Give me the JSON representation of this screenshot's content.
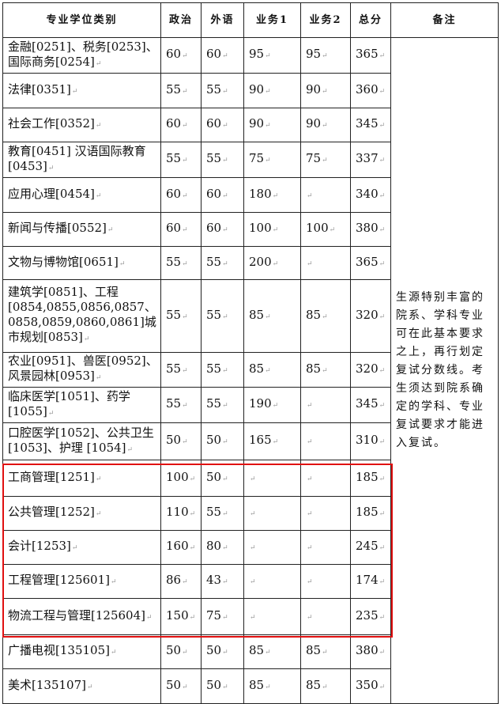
{
  "headers": {
    "category": "专业学位类别",
    "politics": "政治",
    "language": "外语",
    "subject1": "业务1",
    "subject2": "业务2",
    "total": "总分",
    "remark": "备注"
  },
  "rows": [
    {
      "category": "金融[0251]、税务[0253]、国际商务[0254]",
      "politics": "60",
      "language": "60",
      "subject1": "95",
      "subject2": "95",
      "total": "365"
    },
    {
      "category": "法律[0351]",
      "politics": "55",
      "language": "55",
      "subject1": "90",
      "subject2": "90",
      "total": "360"
    },
    {
      "category": "社会工作[0352]",
      "politics": "60",
      "language": "60",
      "subject1": "90",
      "subject2": "90",
      "total": "345"
    },
    {
      "category": "教育[0451] 汉语国际教育[0453]",
      "politics": "55",
      "language": "55",
      "subject1": "75",
      "subject2": "75",
      "total": "337"
    },
    {
      "category": "应用心理[0454]",
      "politics": "60",
      "language": "60",
      "subject1": "180",
      "subject2": "",
      "total": "340"
    },
    {
      "category": "新闻与传播[0552]",
      "politics": "60",
      "language": "60",
      "subject1": "100",
      "subject2": "100",
      "total": "380"
    },
    {
      "category": "文物与博物馆[0651]",
      "politics": "55",
      "language": "55",
      "subject1": "200",
      "subject2": "",
      "total": "365"
    },
    {
      "category": "建筑学[0851]、工程[0854,0855,0856,0857、0858,0859,0860,0861]城市规划[0853]",
      "politics": "55",
      "language": "55",
      "subject1": "85",
      "subject2": "85",
      "total": "320"
    },
    {
      "category": "农业[0951]、兽医[0952]、风景园林[0953]",
      "politics": "55",
      "language": "55",
      "subject1": "85",
      "subject2": "85",
      "total": "320"
    },
    {
      "category": "临床医学[1051]、药学[1055]",
      "politics": "55",
      "language": "55",
      "subject1": "190",
      "subject2": "",
      "total": "345"
    },
    {
      "category": "口腔医学[1052]、公共卫生 [1053]、护理 [1054]",
      "politics": "50",
      "language": "50",
      "subject1": "165",
      "subject2": "",
      "total": "310"
    },
    {
      "category": "工商管理[1251]",
      "politics": "100",
      "language": "50",
      "subject1": "",
      "subject2": "",
      "total": "185"
    },
    {
      "category": "公共管理[1252]",
      "politics": "110",
      "language": "55",
      "subject1": "",
      "subject2": "",
      "total": "185"
    },
    {
      "category": "会计[1253]",
      "politics": "160",
      "language": "80",
      "subject1": "",
      "subject2": "",
      "total": "245"
    },
    {
      "category": "工程管理[125601]",
      "politics": "86",
      "language": "43",
      "subject1": "",
      "subject2": "",
      "total": "174"
    },
    {
      "category": "物流工程与管理[125604]",
      "politics": "150",
      "language": "75",
      "subject1": "",
      "subject2": "",
      "total": "235"
    },
    {
      "category": "广播电视[135105]",
      "politics": "50",
      "language": "50",
      "subject1": "85",
      "subject2": "85",
      "total": "380"
    },
    {
      "category": "美术[135107]",
      "politics": "50",
      "language": "50",
      "subject1": "85",
      "subject2": "85",
      "total": "350"
    }
  ],
  "remark": "生源特别丰富的院系、学科专业可在此基本要求之上，再行划定复试分数线。考生须达到院系确定的学科、专业复试要求才能进入复试。",
  "highlight_color": "#e01010"
}
